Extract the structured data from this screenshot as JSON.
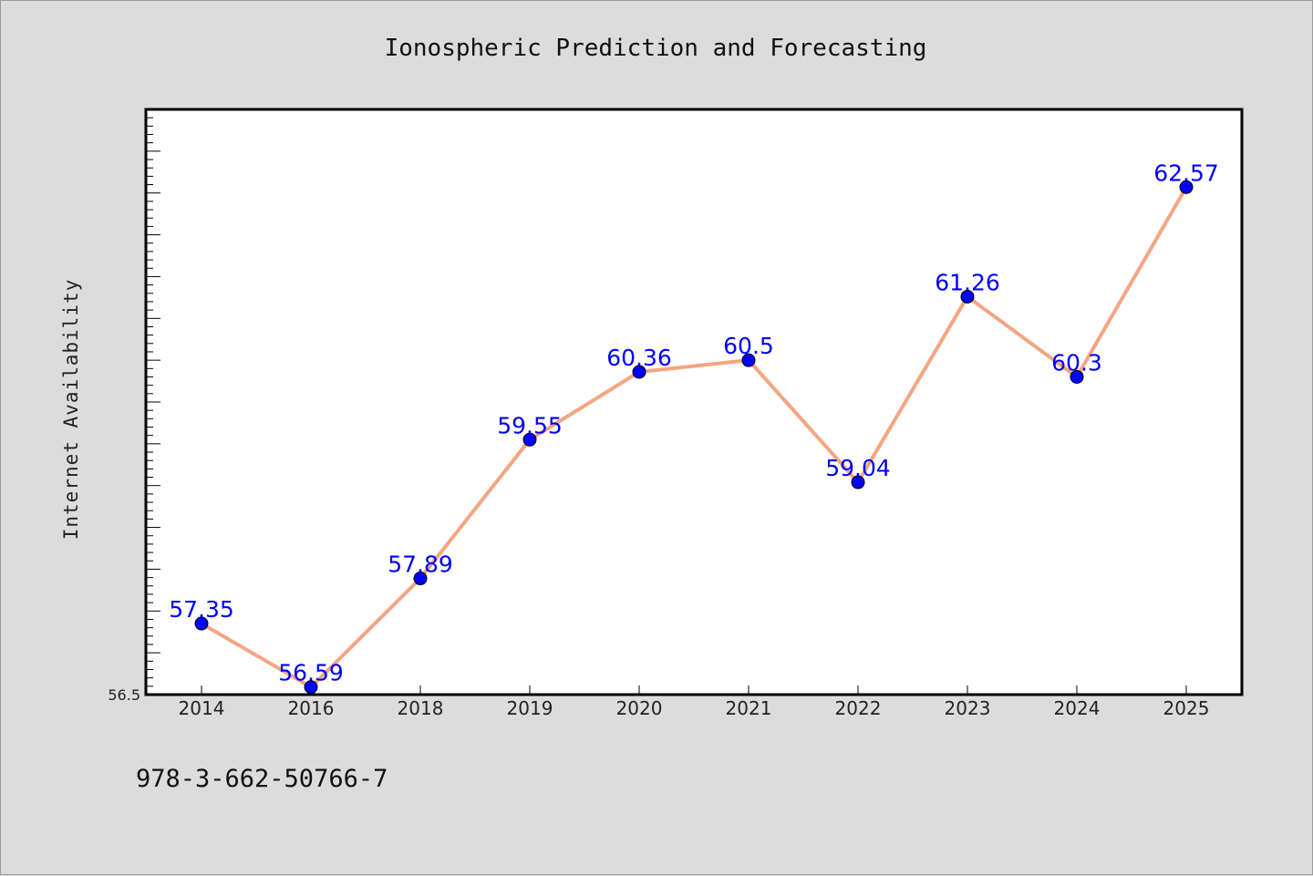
{
  "footnote": "978-3-662-50766-7",
  "colors": {
    "background": "#dcdcdc",
    "plot_background": "#ffffff",
    "line": "#f4a582",
    "marker": "#0000ff",
    "data_label": "#0000ff"
  },
  "chart_data": {
    "type": "line",
    "title": "Ionospheric Prediction and Forecasting",
    "xlabel": "",
    "ylabel": "Internet Availability",
    "categories": [
      "2014",
      "2016",
      "2018",
      "2019",
      "2020",
      "2021",
      "2022",
      "2023",
      "2024",
      "2025"
    ],
    "series": [
      {
        "values": [
          57.35,
          56.59,
          57.89,
          59.55,
          60.36,
          60.5,
          59.04,
          61.26,
          60.3,
          62.57
        ],
        "data_labels": [
          "57.35",
          "56.59",
          "57.89",
          "59.55",
          "60.36",
          "60.5",
          "59.04",
          "61.26",
          "60.3",
          "62.57"
        ]
      }
    ],
    "ylim": [
      56.5,
      63.5
    ],
    "y_tick_labels": [
      "56.5"
    ],
    "grid": false,
    "legend": "none"
  }
}
